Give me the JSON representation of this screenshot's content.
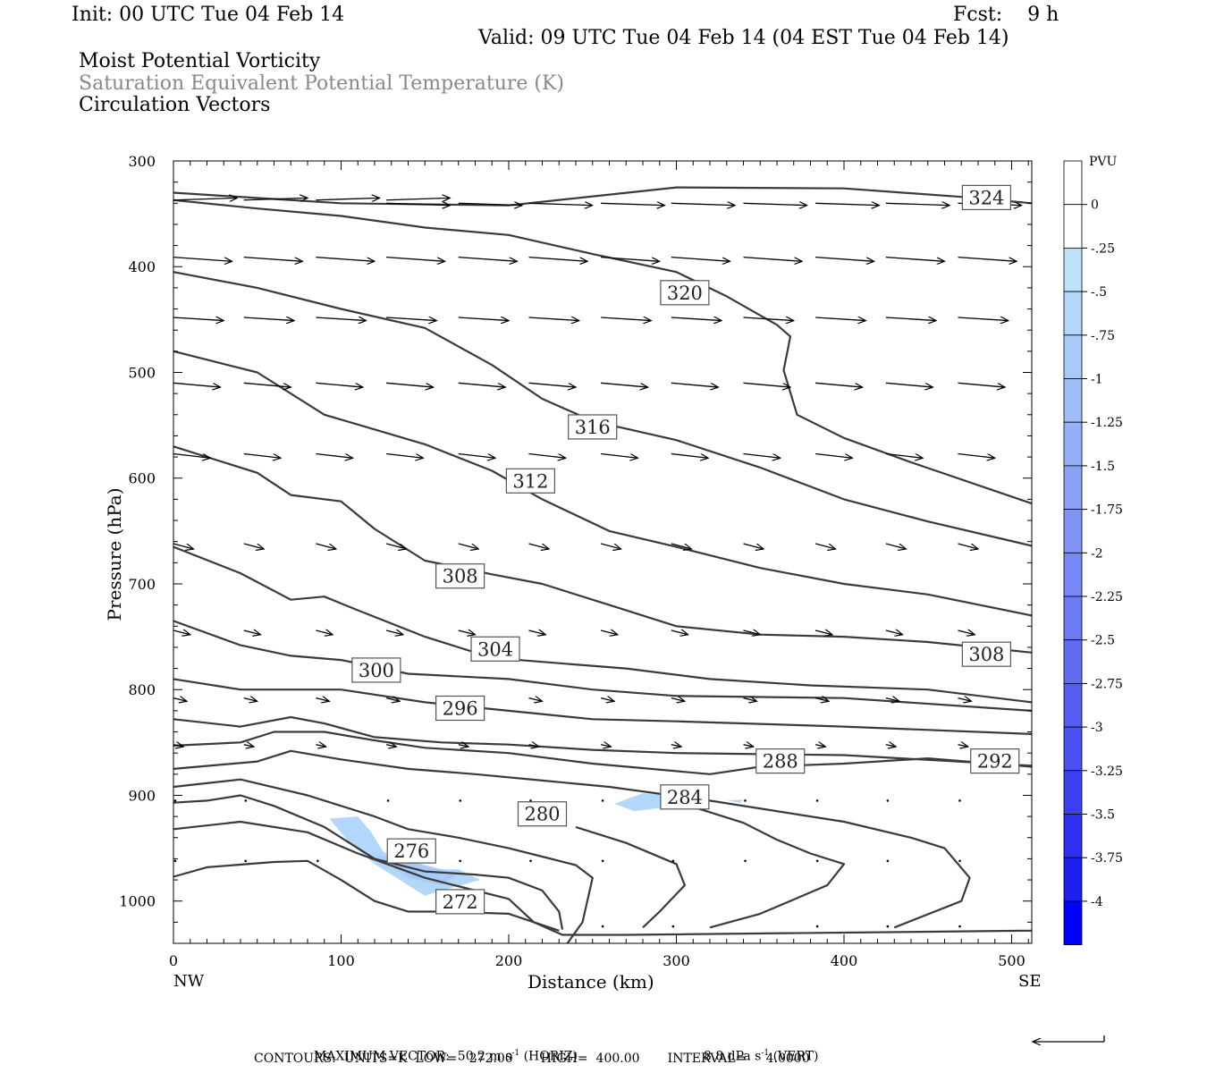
{
  "header": {
    "init": "Init: 00 UTC Tue 04 Feb 14",
    "fcst": "Fcst:    9 h",
    "valid": "Valid: 09 UTC Tue 04 Feb 14 (04 EST Tue 04 Feb 14)",
    "field1": "Moist Potential Vorticity",
    "field2": "Saturation Equivalent Potential Temperature (K)",
    "field3": "Circulation Vectors"
  },
  "footer": {
    "max_vector": "MAXIMUM VECTOR:  50.2 m s",
    "horiz": "(HORIZ)",
    "vert_value": "8.8 dPa s",
    "vert": "(VERT)",
    "exp": "-1",
    "contours": "CONTOURS:  UNITS=K  LOW=   272.00       HIGH=  400.00       INTERVAL=     4.0000"
  },
  "chart_data": {
    "type": "cross-section",
    "xlabel": "Distance (km)",
    "ylabel": "Pressure (hPa)",
    "xlim": [
      0,
      512
    ],
    "ylim": [
      1040,
      300
    ],
    "x_ticks": [
      "0",
      "100",
      "200",
      "300",
      "400",
      "500"
    ],
    "y_ticks": [
      "300",
      "400",
      "500",
      "600",
      "700",
      "800",
      "900",
      "1000"
    ],
    "x_left_label": "NW",
    "x_right_label": "SE",
    "colorbar": {
      "title": "PVU",
      "labels": [
        "0",
        "-.25",
        "-.5",
        "-.75",
        "-1",
        "-1.25",
        "-1.5",
        "-1.75",
        "-2",
        "-2.25",
        "-2.5",
        "-2.75",
        "-3",
        "-3.25",
        "-3.5",
        "-3.75",
        "-4"
      ],
      "colors": [
        "#ffffff",
        "#ffffff",
        "#bde3fb",
        "#b3d7fb",
        "#a8caf9",
        "#9fbdf9",
        "#95aff8",
        "#8ba2f7",
        "#8194f6",
        "#7787f5",
        "#6c7af4",
        "#626cf3",
        "#565ef2",
        "#4a4ff1",
        "#3d40f0",
        "#2f30ef",
        "#1f1ff0",
        "#0000ff"
      ]
    },
    "contour_labels": [
      {
        "text": "324",
        "x": 485,
        "p": 335
      },
      {
        "text": "320",
        "x": 305,
        "p": 425
      },
      {
        "text": "316",
        "x": 250,
        "p": 552
      },
      {
        "text": "312",
        "x": 213,
        "p": 603
      },
      {
        "text": "308",
        "x": 171,
        "p": 693
      },
      {
        "text": "308",
        "x": 485,
        "p": 767
      },
      {
        "text": "304",
        "x": 192,
        "p": 762
      },
      {
        "text": "300",
        "x": 121,
        "p": 782
      },
      {
        "text": "296",
        "x": 171,
        "p": 818
      },
      {
        "text": "292",
        "x": 490,
        "p": 868
      },
      {
        "text": "288",
        "x": 362,
        "p": 868
      },
      {
        "text": "284",
        "x": 305,
        "p": 902
      },
      {
        "text": "280",
        "x": 220,
        "p": 918
      },
      {
        "text": "276",
        "x": 142,
        "p": 953
      },
      {
        "text": "272",
        "x": 171,
        "p": 1001
      }
    ],
    "contours": [
      [
        [
          0,
          330
        ],
        [
          100,
          340
        ],
        [
          200,
          342
        ],
        [
          300,
          325
        ],
        [
          400,
          326
        ],
        [
          470,
          334
        ],
        [
          512,
          340
        ]
      ],
      [
        [
          0,
          337
        ],
        [
          50,
          345
        ],
        [
          100,
          352
        ],
        [
          150,
          363
        ],
        [
          200,
          370
        ],
        [
          250,
          388
        ],
        [
          300,
          405
        ],
        [
          330,
          428
        ],
        [
          360,
          455
        ],
        [
          368,
          466
        ],
        [
          364,
          498
        ],
        [
          372,
          540
        ],
        [
          400,
          562
        ],
        [
          440,
          585
        ],
        [
          512,
          624
        ]
      ],
      [
        [
          0,
          405
        ],
        [
          50,
          420
        ],
        [
          100,
          440
        ],
        [
          150,
          458
        ],
        [
          190,
          493
        ],
        [
          220,
          525
        ],
        [
          250,
          546
        ],
        [
          300,
          564
        ],
        [
          350,
          590
        ],
        [
          400,
          620
        ],
        [
          450,
          641
        ],
        [
          512,
          664
        ]
      ],
      [
        [
          0,
          480
        ],
        [
          50,
          500
        ],
        [
          90,
          540
        ],
        [
          120,
          554
        ],
        [
          150,
          568
        ],
        [
          190,
          593
        ],
        [
          220,
          620
        ],
        [
          260,
          650
        ],
        [
          300,
          665
        ],
        [
          350,
          685
        ],
        [
          400,
          700
        ],
        [
          450,
          710
        ],
        [
          512,
          730
        ]
      ],
      [
        [
          0,
          570
        ],
        [
          50,
          595
        ],
        [
          70,
          616
        ],
        [
          100,
          622
        ],
        [
          120,
          648
        ],
        [
          150,
          678
        ],
        [
          190,
          691
        ],
        [
          220,
          700
        ],
        [
          260,
          720
        ],
        [
          300,
          740
        ],
        [
          350,
          748
        ],
        [
          400,
          750
        ],
        [
          450,
          755
        ],
        [
          512,
          765
        ]
      ],
      [
        [
          0,
          665
        ],
        [
          40,
          690
        ],
        [
          70,
          715
        ],
        [
          90,
          712
        ],
        [
          110,
          725
        ],
        [
          150,
          750
        ],
        [
          190,
          770
        ],
        [
          230,
          775
        ],
        [
          270,
          780
        ],
        [
          320,
          790
        ],
        [
          380,
          796
        ],
        [
          450,
          800
        ],
        [
          512,
          812
        ]
      ],
      [
        [
          0,
          735
        ],
        [
          40,
          758
        ],
        [
          70,
          768
        ],
        [
          100,
          772
        ],
        [
          140,
          785
        ],
        [
          200,
          790
        ],
        [
          250,
          800
        ],
        [
          300,
          806
        ],
        [
          400,
          808
        ],
        [
          512,
          820
        ]
      ],
      [
        [
          0,
          790
        ],
        [
          40,
          800
        ],
        [
          70,
          800
        ],
        [
          100,
          800
        ],
        [
          150,
          812
        ],
        [
          200,
          820
        ],
        [
          250,
          828
        ],
        [
          300,
          830
        ],
        [
          400,
          835
        ],
        [
          512,
          842
        ]
      ],
      [
        [
          0,
          828
        ],
        [
          40,
          835
        ],
        [
          70,
          826
        ],
        [
          90,
          832
        ],
        [
          120,
          845
        ],
        [
          160,
          850
        ],
        [
          200,
          852
        ],
        [
          250,
          857
        ],
        [
          300,
          860
        ],
        [
          400,
          862
        ],
        [
          512,
          872
        ]
      ],
      [
        [
          0,
          853
        ],
        [
          40,
          850
        ],
        [
          60,
          840
        ],
        [
          90,
          840
        ],
        [
          120,
          848
        ],
        [
          150,
          855
        ],
        [
          200,
          860
        ],
        [
          250,
          870
        ],
        [
          320,
          880
        ],
        [
          350,
          873
        ],
        [
          400,
          870
        ],
        [
          450,
          865
        ],
        [
          512,
          873
        ]
      ],
      [
        [
          0,
          875
        ],
        [
          50,
          868
        ],
        [
          70,
          858
        ],
        [
          100,
          866
        ],
        [
          140,
          875
        ],
        [
          180,
          880
        ],
        [
          220,
          886
        ],
        [
          260,
          892
        ],
        [
          320,
          905
        ],
        [
          400,
          925
        ],
        [
          440,
          940
        ],
        [
          460,
          950
        ],
        [
          475,
          978
        ],
        [
          470,
          1000
        ],
        [
          430,
          1025
        ]
      ],
      [
        [
          0,
          892
        ],
        [
          40,
          885
        ],
        [
          80,
          900
        ],
        [
          120,
          920
        ],
        [
          140,
          932
        ],
        [
          170,
          940
        ],
        [
          200,
          950
        ],
        [
          220,
          958
        ],
        [
          240,
          966
        ],
        [
          250,
          978
        ],
        [
          244,
          1020
        ],
        [
          235,
          1040
        ]
      ],
      [
        [
          0,
          907
        ],
        [
          20,
          905
        ],
        [
          40,
          900
        ],
        [
          60,
          910
        ],
        [
          90,
          930
        ],
        [
          120,
          960
        ],
        [
          150,
          972
        ],
        [
          180,
          975
        ],
        [
          200,
          978
        ],
        [
          220,
          990
        ],
        [
          230,
          1010
        ],
        [
          232,
          1027
        ]
      ],
      [
        [
          0,
          932
        ],
        [
          40,
          925
        ],
        [
          80,
          935
        ],
        [
          110,
          955
        ],
        [
          150,
          978
        ],
        [
          175,
          988
        ],
        [
          200,
          998
        ],
        [
          215,
          1020
        ],
        [
          232,
          1032
        ],
        [
          270,
          1032
        ],
        [
          512,
          1028
        ]
      ],
      [
        [
          0,
          977
        ],
        [
          20,
          968
        ],
        [
          60,
          963
        ],
        [
          80,
          962
        ],
        [
          100,
          980
        ],
        [
          120,
          1000
        ],
        [
          140,
          1010
        ],
        [
          160,
          1010
        ],
        [
          200,
          1012
        ],
        [
          230,
          1028
        ]
      ],
      [
        [
          320,
          1025
        ],
        [
          350,
          1012
        ],
        [
          390,
          985
        ],
        [
          400,
          965
        ],
        [
          380,
          955
        ],
        [
          360,
          942
        ],
        [
          340,
          926
        ],
        [
          300,
          906
        ]
      ],
      [
        [
          280,
          1025
        ],
        [
          290,
          1010
        ],
        [
          305,
          985
        ],
        [
          300,
          965
        ],
        [
          270,
          945
        ],
        [
          240,
          930
        ]
      ]
    ],
    "shading": [
      {
        "value": -0.5,
        "points": [
          [
            93,
            922
          ],
          [
            110,
            920
          ],
          [
            118,
            935
          ],
          [
            125,
            953
          ],
          [
            140,
            968
          ],
          [
            150,
            970
          ],
          [
            170,
            970
          ],
          [
            183,
            980
          ],
          [
            160,
            990
          ],
          [
            150,
            995
          ],
          [
            140,
            985
          ],
          [
            120,
            965
          ],
          [
            105,
            945
          ]
        ]
      },
      {
        "value": -0.75,
        "points": [
          [
            120,
            956
          ],
          [
            140,
            962
          ],
          [
            170,
            974
          ],
          [
            160,
            985
          ],
          [
            140,
            978
          ]
        ]
      },
      {
        "value": -0.5,
        "points": [
          [
            263,
            908
          ],
          [
            280,
            898
          ],
          [
            300,
            900
          ],
          [
            290,
            912
          ],
          [
            275,
            915
          ]
        ]
      },
      {
        "value": -0.5,
        "points": [
          [
            330,
            905
          ],
          [
            340,
            904
          ],
          [
            338,
            907
          ]
        ]
      }
    ],
    "vectors": [
      {
        "p": 337,
        "xs": [
          0,
          42,
          85,
          127
        ],
        "len": 38,
        "dp": -2
      },
      {
        "p": 340,
        "xs": [
          127,
          170,
          212,
          255,
          297,
          340,
          383,
          425,
          468
        ],
        "len": 38,
        "dp": 2
      },
      {
        "p": 391,
        "xs": [
          0,
          42,
          85,
          127,
          170,
          212,
          255,
          297,
          340,
          383,
          425,
          468
        ],
        "len": 35,
        "dp": 4
      },
      {
        "p": 448,
        "xs": [
          0,
          42,
          85,
          127,
          170,
          212,
          255,
          297,
          340,
          383,
          425,
          468
        ],
        "len": 30,
        "dp": 3
      },
      {
        "p": 510,
        "xs": [
          0,
          42,
          85,
          127,
          170,
          212,
          255,
          297,
          340,
          383,
          425,
          468
        ],
        "len": 28,
        "dp": 4
      },
      {
        "p": 577,
        "xs": [
          0,
          42,
          85,
          127,
          170,
          212,
          255,
          297,
          340,
          383,
          425,
          468
        ],
        "len": 22,
        "dp": 4
      },
      {
        "p": 662,
        "xs": [
          0,
          42,
          85,
          127,
          170,
          212,
          255,
          297,
          340,
          383,
          425,
          468
        ],
        "len": 12,
        "dp": 5
      },
      {
        "p": 744,
        "xs": [
          0,
          42,
          85,
          127,
          170,
          212,
          255,
          297,
          340,
          383,
          425,
          468
        ],
        "len": 10,
        "dp": 4
      },
      {
        "p": 808,
        "xs": [
          0,
          42,
          85,
          127,
          170,
          212,
          255,
          297,
          340,
          383,
          425,
          468
        ],
        "len": 8,
        "dp": 3
      },
      {
        "p": 852,
        "xs": [
          0,
          42,
          85,
          127,
          170,
          212,
          255,
          297,
          340,
          383,
          425,
          468
        ],
        "len": 6,
        "dp": 2
      }
    ],
    "points": [
      {
        "p": 905,
        "xs": [
          0,
          42,
          127,
          170,
          212,
          255,
          340,
          383,
          425,
          468
        ]
      },
      {
        "p": 962,
        "xs": [
          0,
          42,
          85,
          127,
          170,
          212,
          255,
          297,
          340,
          383,
          425,
          468
        ]
      },
      {
        "p": 1024,
        "xs": [
          255,
          297,
          383,
          425,
          468
        ]
      }
    ]
  }
}
